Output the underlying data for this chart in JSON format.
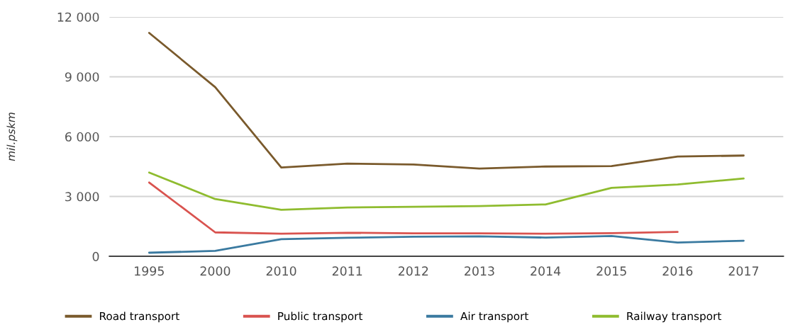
{
  "chart_data": {
    "type": "line",
    "ylabel": "mil.pskm",
    "categories": [
      "1995",
      "2000",
      "2010",
      "2011",
      "2012",
      "2013",
      "2014",
      "2015",
      "2016",
      "2017"
    ],
    "series": [
      {
        "name": "Road transport",
        "color": "#7a5a2c",
        "values": [
          11200,
          8480,
          4450,
          4650,
          4600,
          4400,
          4500,
          4520,
          5000,
          5050
        ]
      },
      {
        "name": "Public transport",
        "color": "#d9534f",
        "values": [
          3700,
          1200,
          1130,
          1180,
          1150,
          1150,
          1130,
          1160,
          1220,
          null
        ]
      },
      {
        "name": "Air transport",
        "color": "#3a7aa0",
        "values": [
          180,
          270,
          860,
          930,
          980,
          1000,
          940,
          1020,
          690,
          780
        ]
      },
      {
        "name": "Railway transport",
        "color": "#8fbc2f",
        "values": [
          4200,
          2870,
          2330,
          2450,
          2480,
          2520,
          2600,
          3430,
          3600,
          3900
        ]
      }
    ],
    "ylim": [
      0,
      12000
    ],
    "yticks": [
      0,
      {
        "value": 3000,
        "label": "3 000"
      },
      {
        "value": 6000,
        "label": "6 000"
      },
      {
        "value": 9000,
        "label": "9 000"
      },
      {
        "value": 12000,
        "label": "12 000"
      }
    ],
    "grid": "y",
    "legend": "bottom",
    "marker": "none",
    "line_style": "solid"
  }
}
